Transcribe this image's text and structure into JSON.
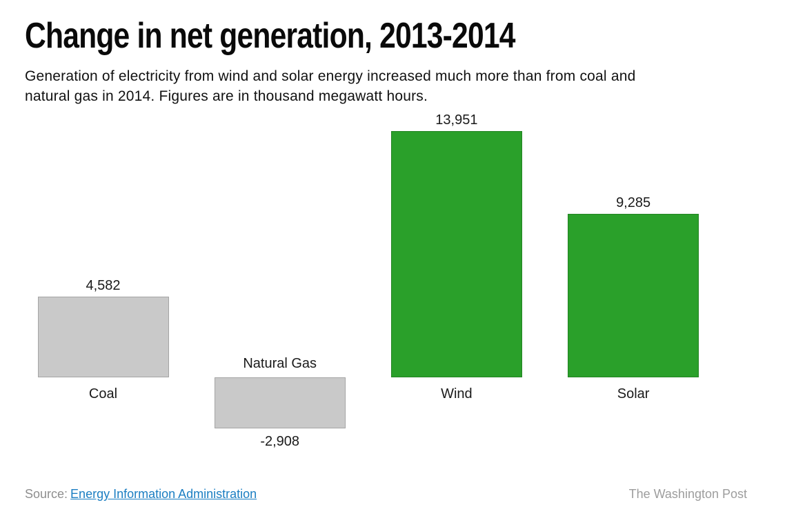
{
  "chart_data": {
    "type": "bar",
    "title": "Change in net generation, 2013-2014",
    "subtitle": "Generation of electricity from wind and solar energy increased much more than from coal and natural gas in 2014. Figures are in thousand megawatt hours.",
    "subtitle_lines": [
      "Generation of electricity from wind and solar energy increased much more than from coal and",
      "natural gas in 2014. Figures are in thousand megawatt hours.",
      ""
    ],
    "unit": "thousand megawatt hours",
    "categories": [
      "Coal",
      "Natural Gas",
      "Wind",
      "Solar"
    ],
    "values": [
      4582,
      -2908,
      13951,
      9285
    ],
    "value_labels": [
      "4,582",
      "-2,908",
      "13,951",
      "9,285"
    ],
    "bar_colors": [
      "#c9c9c9",
      "#c9c9c9",
      "#2aa02a",
      "#2aa02a"
    ],
    "baseline": 0,
    "ylim": [
      -2908,
      13951
    ],
    "grid": "off",
    "axis_lines": "none",
    "legend": "none"
  },
  "footer": {
    "source_label": "Source:",
    "source_link": "Energy Information Administration",
    "credit": "The Washington Post"
  },
  "colors": {
    "positive_accent_green": "#2aa02a",
    "neutral_gray": "#c9c9c9",
    "link_blue": "#1b7ec2",
    "muted_text": "#8e8e8e",
    "label_text": "#1a1a1a"
  }
}
